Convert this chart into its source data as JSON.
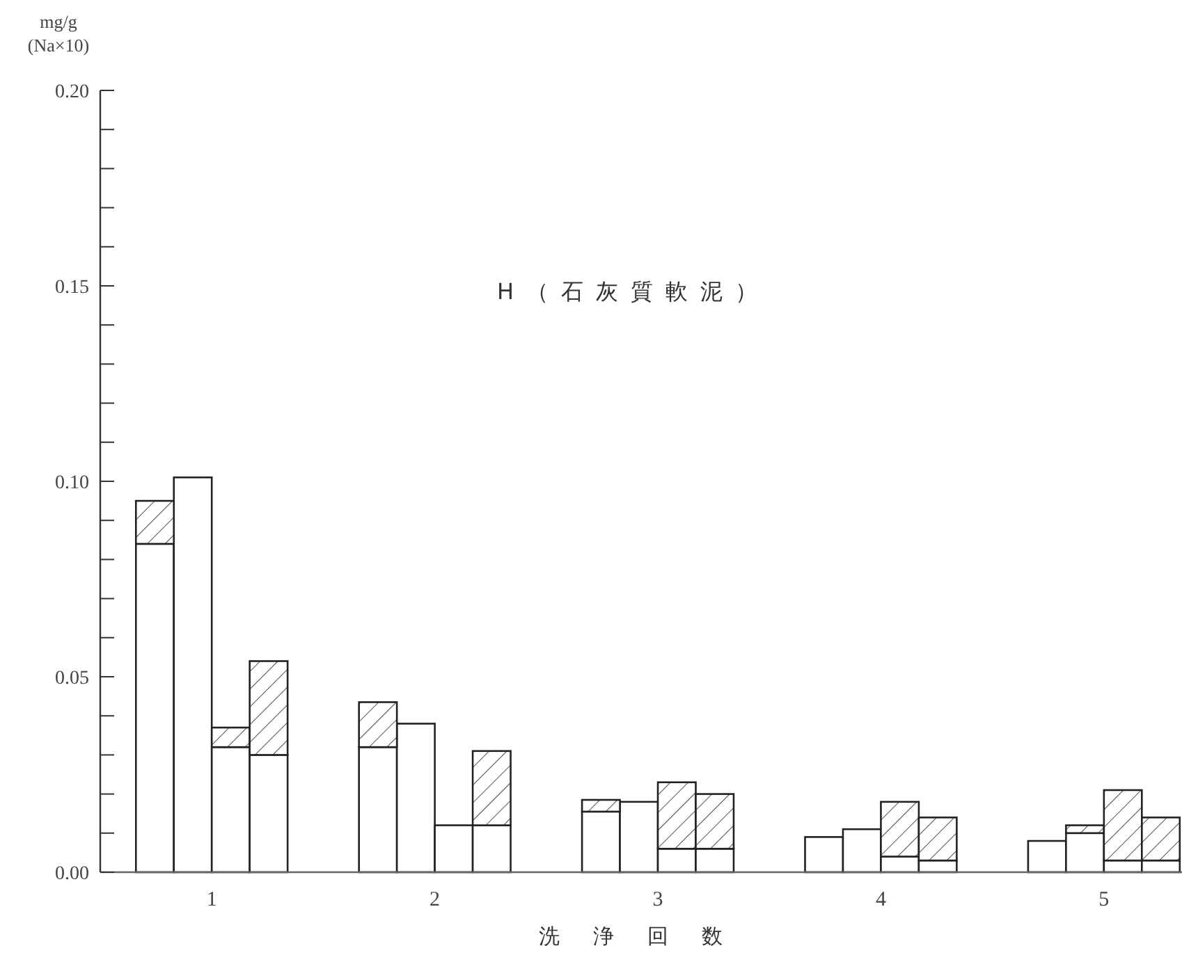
{
  "chart_data": {
    "type": "bar",
    "title": "H（石灰質軟泥）",
    "xlabel": "洗浄回数",
    "ylabel": "mg/g (Na×10)",
    "x": [
      0.745,
      0.915,
      1.085,
      1.255,
      1.745,
      1.915,
      2.085,
      2.255,
      2.745,
      2.915,
      3.085,
      3.255,
      3.745,
      3.915,
      4.085,
      4.255,
      4.745,
      4.915,
      5.085,
      5.255
    ],
    "stacked": true,
    "series": [
      {
        "color": "#ffffff",
        "values": [
          0.084,
          0.101,
          0.032,
          0.03,
          0.032,
          0.038,
          0.012,
          0.012,
          0.0155,
          0.018,
          0.006,
          0.006,
          0.009,
          0.011,
          0.004,
          0.003,
          0.008,
          0.01,
          0.003,
          0.003
        ]
      },
      {
        "color": "#222222",
        "values": [
          0.011,
          0,
          0.005,
          0.024,
          0.0115,
          0,
          0,
          0.019,
          0.003,
          0,
          0.017,
          0.014,
          0,
          0,
          0.014,
          0.011,
          0,
          0.002,
          0.018,
          0.011
        ]
      }
    ],
    "xlim": [
      0.5,
      5.35
    ],
    "xticks": [
      1,
      2,
      3,
      4,
      5
    ],
    "ylim": [
      0,
      0.2
    ],
    "yticks": [
      {
        "value": 0,
        "label": "0.00"
      },
      {
        "value": 0.01,
        "label": null
      },
      {
        "value": 0.02,
        "label": null
      },
      {
        "value": 0.03,
        "label": null
      },
      {
        "value": 0.04,
        "label": null
      },
      {
        "value": 0.05,
        "label": "0.05"
      },
      {
        "value": 0.06,
        "label": null
      },
      {
        "value": 0.07,
        "label": null
      },
      {
        "value": 0.08,
        "label": null
      },
      {
        "value": 0.09,
        "label": null
      },
      {
        "value": 0.1,
        "label": "0.10"
      },
      {
        "value": 0.11,
        "label": null
      },
      {
        "value": 0.12,
        "label": null
      },
      {
        "value": 0.13,
        "label": null
      },
      {
        "value": 0.14,
        "label": null
      },
      {
        "value": 0.15,
        "label": "0.15"
      },
      {
        "value": 0.16,
        "label": null
      },
      {
        "value": 0.17,
        "label": null
      },
      {
        "value": 0.18,
        "label": null
      },
      {
        "value": 0.19,
        "label": null
      },
      {
        "value": 0.2,
        "label": "0.20"
      }
    ]
  }
}
